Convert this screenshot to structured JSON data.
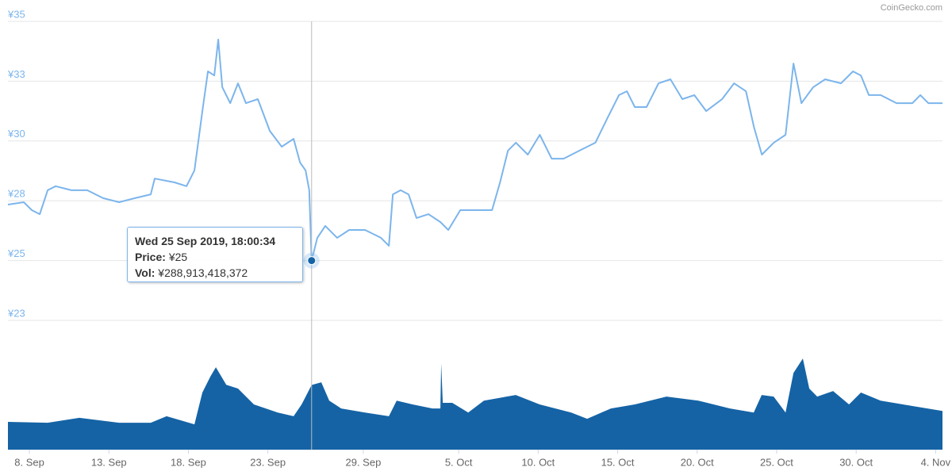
{
  "chart_data": {
    "type": "line",
    "watermark": "CoinGecko.com",
    "xlim": [
      6.65,
      65.43
    ],
    "ylim": [
      22.5,
      35
    ],
    "y2lim": [
      0,
      450000000000
    ],
    "grid": true,
    "yticks": [
      {
        "value": 22.5,
        "label": "¥23"
      },
      {
        "value": 25,
        "label": "¥25"
      },
      {
        "value": 27.5,
        "label": "¥28"
      },
      {
        "value": 30,
        "label": "¥30"
      },
      {
        "value": 32.5,
        "label": "¥33"
      },
      {
        "value": 35,
        "label": "¥35"
      }
    ],
    "xticks": [
      {
        "value": 8,
        "label": "8. Sep"
      },
      {
        "value": 13,
        "label": "13. Sep"
      },
      {
        "value": 18,
        "label": "18. Sep"
      },
      {
        "value": 23,
        "label": "23. Sep"
      },
      {
        "value": 29,
        "label": "29. Sep"
      },
      {
        "value": 35,
        "label": "5. Oct"
      },
      {
        "value": 40,
        "label": "10. Oct"
      },
      {
        "value": 45,
        "label": "15. Oct"
      },
      {
        "value": 50,
        "label": "20. Oct"
      },
      {
        "value": 55,
        "label": "25. Oct"
      },
      {
        "value": 60,
        "label": "30. Oct"
      },
      {
        "value": 65,
        "label": "4. Nov"
      }
    ],
    "series": [
      {
        "type": "line",
        "color": "#7cb5ec",
        "x": [
          6.65,
          7.65,
          8.15,
          8.65,
          9.15,
          9.65,
          10.64,
          11.64,
          12.64,
          13.64,
          14.64,
          15.63,
          15.88,
          17.13,
          17.88,
          18.38,
          18.88,
          19.23,
          19.63,
          19.88,
          20.13,
          20.63,
          21.12,
          21.62,
          22.37,
          23.12,
          23.87,
          24.62,
          25.02,
          25.37,
          25.6,
          25.75,
          26.11,
          26.61,
          27.36,
          28.11,
          29.11,
          30.11,
          30.61,
          30.86,
          31.35,
          31.85,
          32.35,
          33.1,
          33.85,
          34.35,
          35.1,
          36.1,
          37.1,
          37.6,
          38.1,
          38.6,
          39.35,
          40.1,
          40.85,
          41.6,
          42.6,
          43.6,
          44.33,
          45.08,
          45.58,
          46.08,
          46.82,
          47.57,
          48.32,
          49.07,
          49.82,
          50.57,
          51.57,
          52.32,
          53.07,
          53.57,
          54.07,
          54.82,
          55.56,
          56.06,
          56.56,
          57.3,
          58.05,
          59.05,
          59.8,
          60.3,
          60.8,
          61.54,
          62.54,
          63.54,
          64.04,
          64.54,
          65.43
        ],
        "values": [
          27.34,
          27.44,
          27.11,
          26.94,
          27.94,
          28.11,
          27.94,
          27.94,
          27.61,
          27.44,
          27.61,
          27.77,
          28.43,
          28.27,
          28.11,
          28.77,
          31.25,
          32.91,
          32.74,
          34.24,
          32.25,
          31.58,
          32.41,
          31.58,
          31.75,
          30.42,
          29.76,
          30.09,
          29.1,
          28.77,
          27.94,
          25,
          25.95,
          26.45,
          25.95,
          26.28,
          26.28,
          25.95,
          25.62,
          27.77,
          27.94,
          27.77,
          26.78,
          26.94,
          26.61,
          26.28,
          27.11,
          27.11,
          27.11,
          28.27,
          29.6,
          29.93,
          29.43,
          30.26,
          29.26,
          29.26,
          29.6,
          29.93,
          30.92,
          31.92,
          32.08,
          31.42,
          31.42,
          32.41,
          32.58,
          31.75,
          31.92,
          31.25,
          31.75,
          32.41,
          32.08,
          30.59,
          29.43,
          29.93,
          30.26,
          33.24,
          31.58,
          32.25,
          32.58,
          32.41,
          32.91,
          32.74,
          31.92,
          31.92,
          31.58,
          31.58,
          31.92,
          31.58,
          31.58
        ]
      },
      {
        "type": "area",
        "axis": "y2",
        "color": "#1563a5",
        "x": [
          6.65,
          9.15,
          11.14,
          13.64,
          15.63,
          16.63,
          18.38,
          18.88,
          19.38,
          19.73,
          20.38,
          21.12,
          22.12,
          23.62,
          24.62,
          25.12,
          25.75,
          26.36,
          26.86,
          27.61,
          29.11,
          30.61,
          31.1,
          32.1,
          33.35,
          33.85,
          33.9,
          34.0,
          34.6,
          35.6,
          36.59,
          38.59,
          40.09,
          42.08,
          43.08,
          44.58,
          46.08,
          48.07,
          50.07,
          52.06,
          53.56,
          54.06,
          54.81,
          55.56,
          56.06,
          56.65,
          57.05,
          57.55,
          58.55,
          59.55,
          60.3,
          61.54,
          63.54,
          65.43
        ],
        "values": [
          124000000000,
          120000000000,
          142000000000,
          120000000000,
          120000000000,
          149000000000,
          113000000000,
          255000000000,
          326000000000,
          368000000000,
          290000000000,
          273000000000,
          202000000000,
          166000000000,
          149000000000,
          202000000000,
          288913418372,
          301000000000,
          219000000000,
          184000000000,
          166000000000,
          149000000000,
          219000000000,
          202000000000,
          184000000000,
          184000000000,
          386000000000,
          209000000000,
          209000000000,
          166000000000,
          219000000000,
          244000000000,
          202000000000,
          166000000000,
          138000000000,
          184000000000,
          202000000000,
          237000000000,
          219000000000,
          184000000000,
          166000000000,
          244000000000,
          237000000000,
          166000000000,
          343000000000,
          407000000000,
          273000000000,
          237000000000,
          262000000000,
          202000000000,
          255000000000,
          219000000000,
          195000000000,
          173000000000
        ]
      }
    ],
    "tooltip": {
      "date": "Wed 25 Sep 2019, 18:00:34",
      "price_label": "Price:",
      "price": "¥25",
      "vol_label": "Vol:",
      "vol": "¥288,913,418,372"
    }
  }
}
